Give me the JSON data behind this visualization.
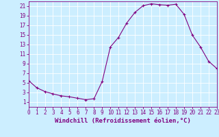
{
  "x_values": [
    0,
    1,
    2,
    3,
    4,
    5,
    6,
    7,
    8,
    9,
    10,
    11,
    12,
    13,
    14,
    15,
    16,
    17,
    18,
    19,
    20,
    21,
    22,
    23
  ],
  "y_values": [
    5.5,
    4.0,
    3.2,
    2.7,
    2.3,
    2.1,
    1.8,
    1.5,
    1.7,
    5.3,
    12.5,
    14.5,
    17.5,
    19.7,
    21.1,
    21.5,
    21.3,
    21.2,
    21.4,
    19.3,
    15.0,
    12.5,
    9.5,
    8.0
  ],
  "line_color": "#800080",
  "marker": "+",
  "background_color": "#cceeff",
  "grid_color": "#aadddd",
  "xlabel": "Windchill (Refroidissement éolien,°C)",
  "ylabel": "",
  "xlim": [
    0,
    23
  ],
  "ylim": [
    0,
    22
  ],
  "yticks": [
    1,
    3,
    5,
    7,
    9,
    11,
    13,
    15,
    17,
    19,
    21
  ],
  "xticks": [
    0,
    1,
    2,
    3,
    4,
    5,
    6,
    7,
    8,
    9,
    10,
    11,
    12,
    13,
    14,
    15,
    16,
    17,
    18,
    19,
    20,
    21,
    22,
    23
  ],
  "tick_color": "#800080",
  "label_color": "#800080",
  "label_fontsize": 6.5,
  "tick_fontsize": 5.5,
  "spine_color": "#800080",
  "line_width": 0.8,
  "marker_size": 3,
  "marker_edge_width": 0.8
}
